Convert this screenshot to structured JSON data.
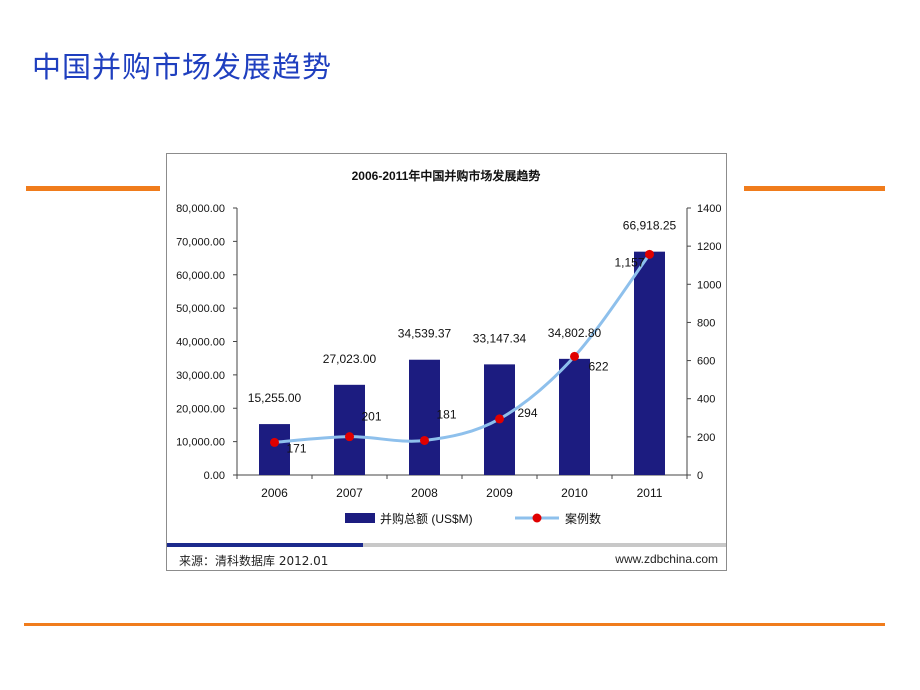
{
  "slide": {
    "title": "中国并购市场发展趋势"
  },
  "colors": {
    "title": "#1f3fbf",
    "accent_rule": "#f07c1c",
    "bar": "#1c1c80",
    "line": "#8ec0ec",
    "marker": "#e00000"
  },
  "chart_data": {
    "type": "bar",
    "title": "2006-2011年中国并购市场发展趋势",
    "categories": [
      "2006",
      "2007",
      "2008",
      "2009",
      "2010",
      "2011"
    ],
    "series": [
      {
        "name": "并购总额 (US$M)",
        "type": "bar",
        "axis": "left",
        "values": [
          15255.0,
          27023.0,
          34539.37,
          33147.34,
          34802.8,
          66918.25
        ],
        "labels": [
          "15,255.00",
          "27,023.00",
          "34,539.37",
          "33,147.34",
          "34,802.80",
          "66,918.25"
        ]
      },
      {
        "name": "案例数",
        "type": "line",
        "axis": "right",
        "values": [
          171,
          201,
          181,
          294,
          622,
          1157
        ],
        "labels": [
          "171",
          "201",
          "181",
          "294",
          "622",
          "1,157"
        ]
      }
    ],
    "y_left": {
      "min": 0,
      "max": 80000,
      "ticks": [
        "0.00",
        "10,000.00",
        "20,000.00",
        "30,000.00",
        "40,000.00",
        "50,000.00",
        "60,000.00",
        "70,000.00",
        "80,000.00"
      ]
    },
    "y_right": {
      "min": 0,
      "max": 1400,
      "ticks": [
        "0",
        "200",
        "400",
        "600",
        "800",
        "1000",
        "1200",
        "1400"
      ]
    },
    "grid": false,
    "legend_position": "bottom"
  },
  "footer": {
    "source": "来源：清科数据库 2012.01",
    "website": "www.zdbchina.com"
  }
}
